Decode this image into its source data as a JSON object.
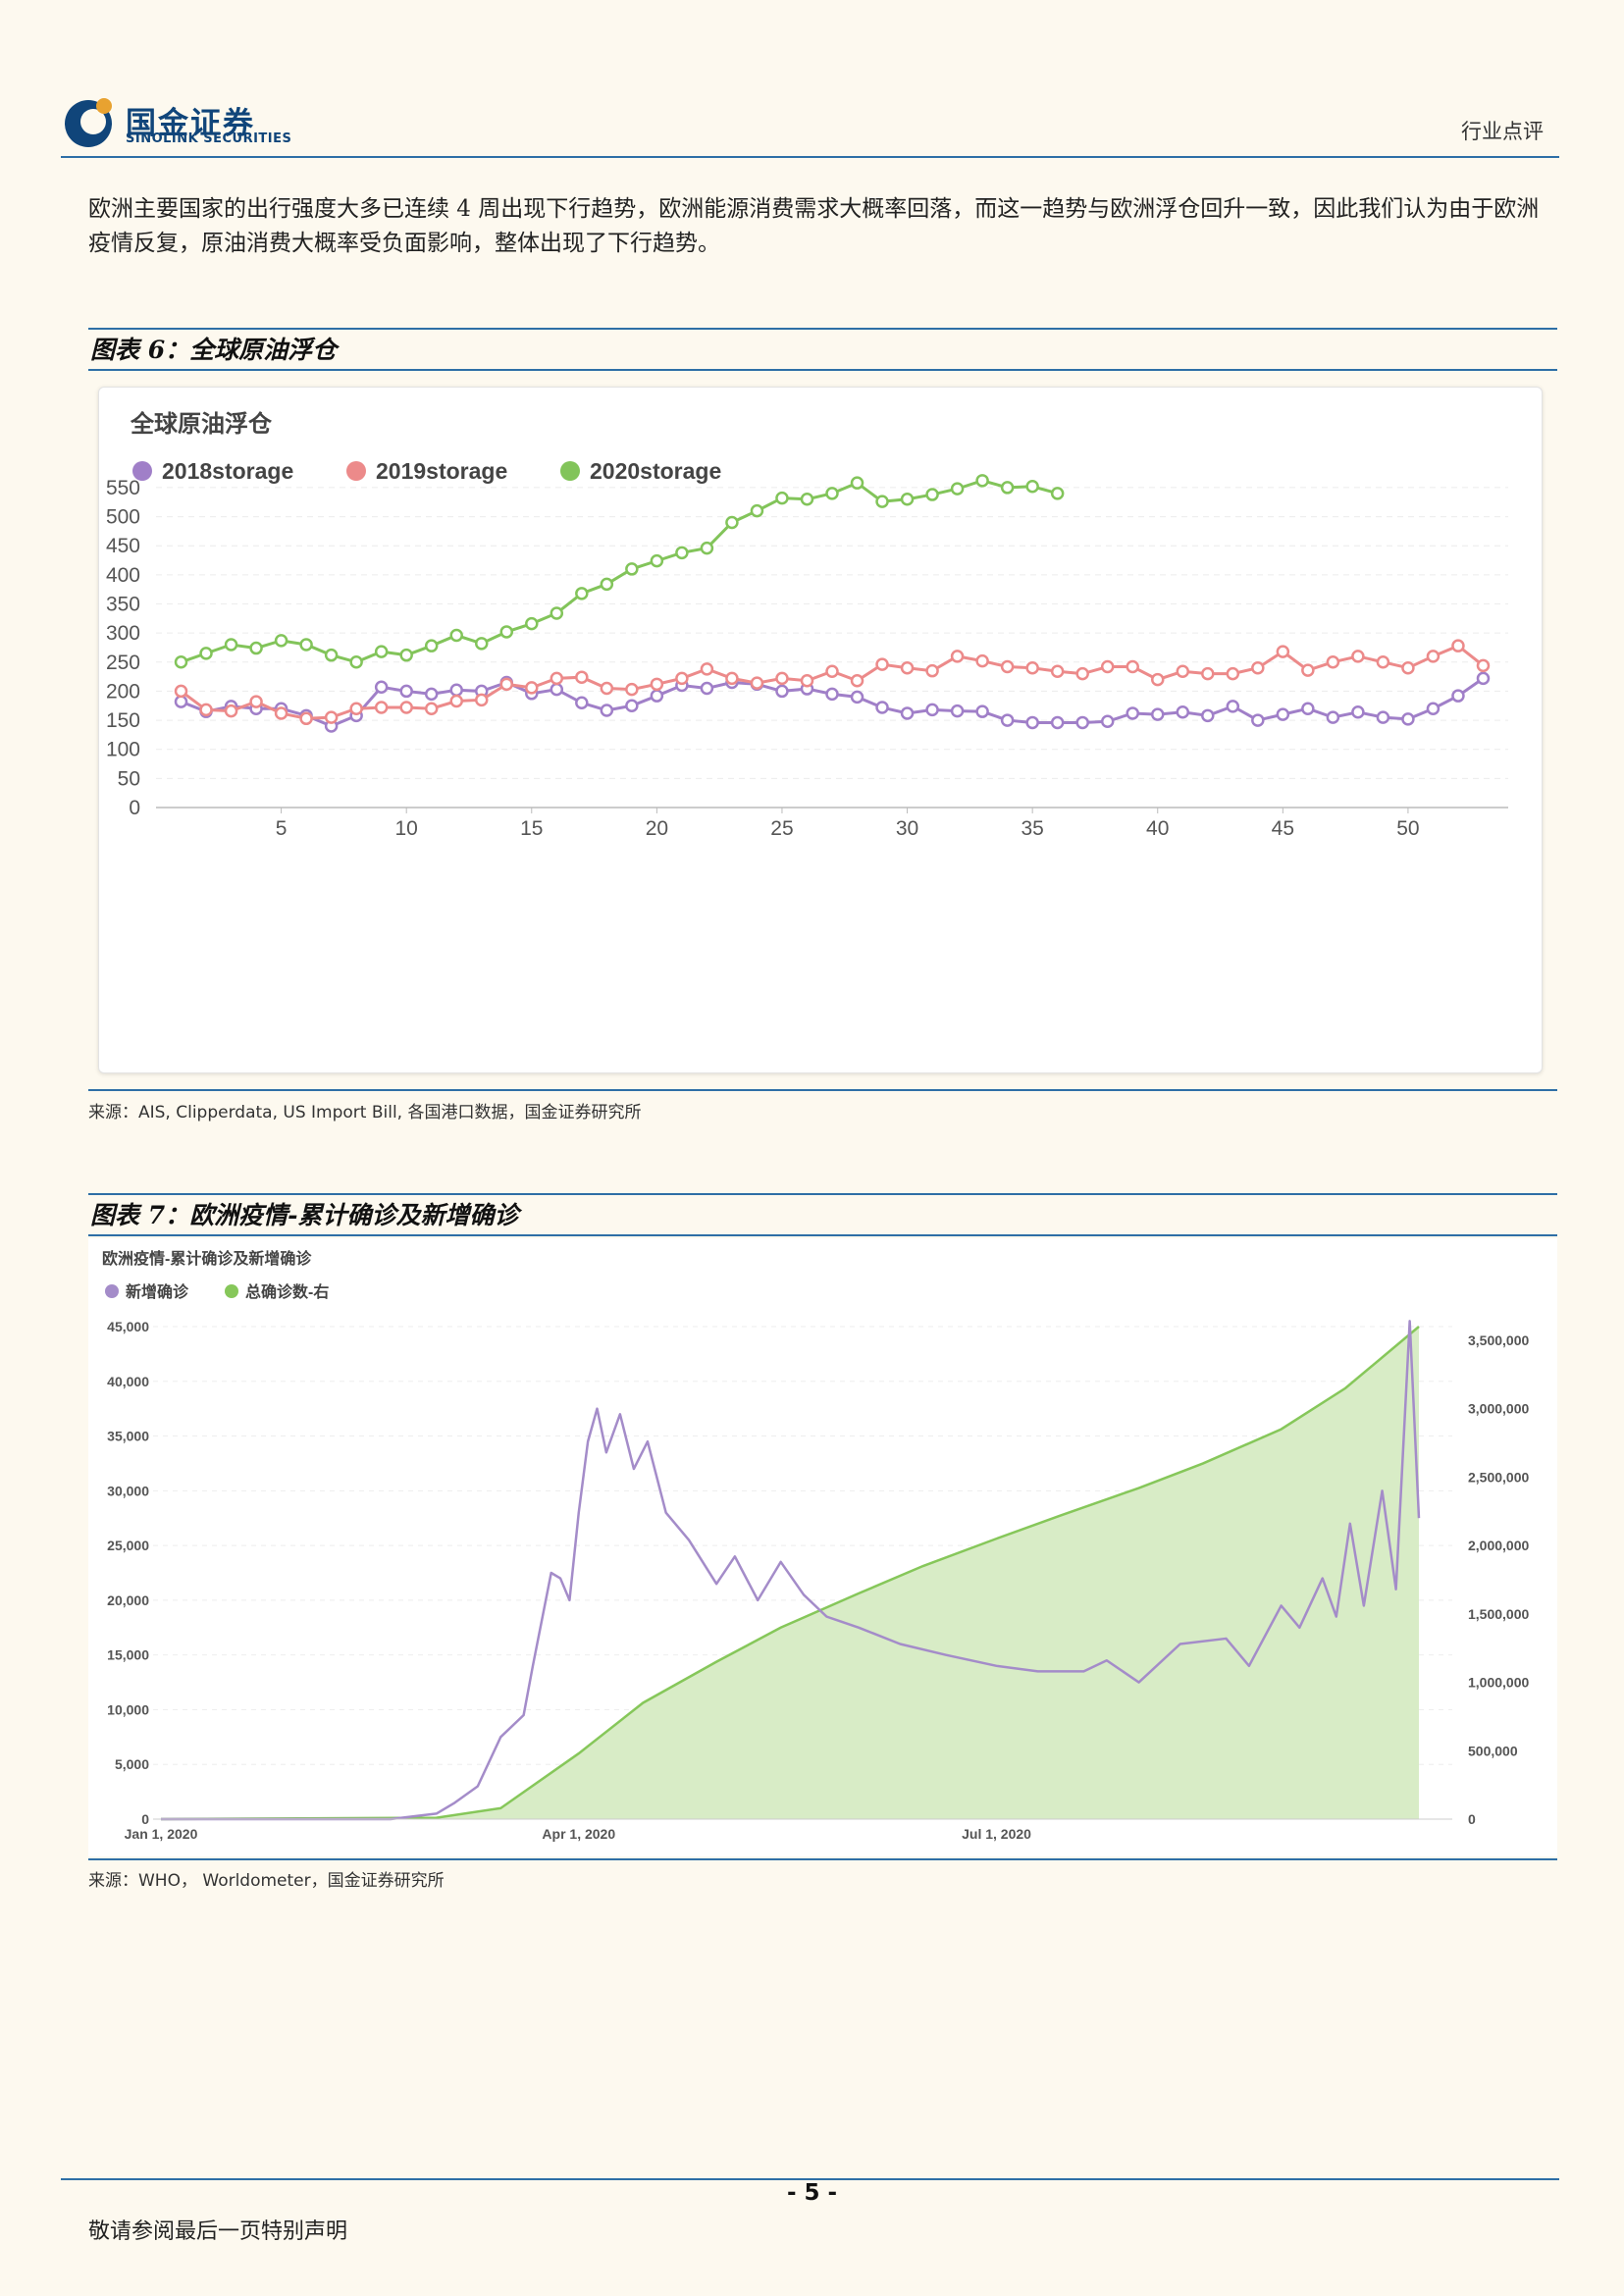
{
  "header": {
    "company_name": "国金证券",
    "company_name_en": "SINOLINK SECURITIES",
    "doc_type": "行业点评"
  },
  "body": {
    "paragraph": "欧洲主要国家的出行强度大多已连续 4 周出现下行趋势，欧洲能源消费需求大概率回落，而这一趋势与欧洲浮仓回升一致，因此我们认为由于欧洲疫情反复，原油消费大概率受负面影响，整体出现了下行趋势。"
  },
  "figure6": {
    "caption": "图表 6：全球原油浮仓",
    "source": "来源：AIS, Clipperdata, US Import Bill, 各国港口数据，国金证券研究所"
  },
  "figure7": {
    "caption": "图表 7：欧洲疫情-累计确诊及新增确诊",
    "source": "来源：WHO， Worldometer，国金证券研究所"
  },
  "footer": {
    "page_number": "- 5 -",
    "note": "敬请参阅最后一页特别声明"
  },
  "colors": {
    "brand_blue": "#10457a",
    "rule_blue": "#2e6fa6",
    "s2018": "#a07fc8",
    "s2019": "#ec8a8a",
    "s2020": "#82c45a",
    "new_cases": "#a48cc9",
    "total_cases": "#86c75a"
  },
  "chart_data": [
    {
      "type": "line",
      "title": "全球原油浮仓",
      "legend_placement": "top-left",
      "grid": true,
      "x_ticks": [
        5,
        10,
        15,
        20,
        25,
        30,
        35,
        40,
        45,
        50
      ],
      "y_ticks": [
        0,
        50,
        100,
        150,
        200,
        250,
        300,
        350,
        400,
        450,
        500,
        550
      ],
      "xlim": [
        0,
        54
      ],
      "ylim": [
        0,
        560
      ],
      "series": [
        {
          "name": "2018storage",
          "x": [
            1,
            2,
            3,
            4,
            5,
            6,
            7,
            8,
            9,
            10,
            11,
            12,
            13,
            14,
            15,
            16,
            17,
            18,
            19,
            20,
            21,
            22,
            23,
            24,
            25,
            26,
            27,
            28,
            29,
            30,
            31,
            32,
            33,
            34,
            35,
            36,
            37,
            38,
            39,
            40,
            41,
            42,
            43,
            44,
            45,
            46,
            47,
            48,
            49,
            50,
            51,
            52,
            53
          ],
          "values": [
            182,
            165,
            174,
            170,
            170,
            158,
            140,
            158,
            207,
            200,
            195,
            202,
            200,
            215,
            196,
            203,
            180,
            167,
            175,
            192,
            210,
            205,
            215,
            212,
            200,
            204,
            195,
            190,
            172,
            162,
            168,
            166,
            165,
            150,
            146,
            146,
            146,
            148,
            162,
            160,
            164,
            158,
            174,
            150,
            160,
            170,
            155,
            164,
            155,
            152,
            170,
            192,
            222
          ]
        },
        {
          "name": "2019storage",
          "x": [
            1,
            2,
            3,
            4,
            5,
            6,
            7,
            8,
            9,
            10,
            11,
            12,
            13,
            14,
            15,
            16,
            17,
            18,
            19,
            20,
            21,
            22,
            23,
            24,
            25,
            26,
            27,
            28,
            29,
            30,
            31,
            32,
            33,
            34,
            35,
            36,
            37,
            38,
            39,
            40,
            41,
            42,
            43,
            44,
            45,
            46,
            47,
            48,
            49,
            50,
            51,
            52,
            53
          ],
          "values": [
            200,
            168,
            166,
            182,
            162,
            153,
            155,
            170,
            172,
            172,
            170,
            183,
            185,
            212,
            206,
            222,
            224,
            205,
            203,
            212,
            222,
            238,
            222,
            214,
            222,
            218,
            234,
            218,
            246,
            240,
            235,
            260,
            252,
            242,
            240,
            234,
            230,
            242,
            242,
            220,
            234,
            230,
            230,
            240,
            268,
            236,
            250,
            260,
            250,
            240,
            260,
            278,
            244
          ]
        },
        {
          "name": "2020storage",
          "x": [
            1,
            2,
            3,
            4,
            5,
            6,
            7,
            8,
            9,
            10,
            11,
            12,
            13,
            14,
            15,
            16,
            17,
            18,
            19,
            20,
            21,
            22,
            23,
            24,
            25,
            26,
            27,
            28,
            29,
            30,
            31,
            32,
            33,
            34,
            35,
            36
          ],
          "values": [
            250,
            265,
            280,
            274,
            287,
            280,
            262,
            250,
            268,
            262,
            278,
            296,
            282,
            302,
            316,
            334,
            368,
            384,
            410,
            424,
            438,
            446,
            490,
            510,
            532,
            530,
            540,
            558,
            526,
            530,
            538,
            548,
            562,
            550,
            552,
            540
          ]
        }
      ]
    },
    {
      "type": "area",
      "title": "欧洲疫情-累计确诊及新增确诊",
      "legend_placement": "top-left",
      "grid": true,
      "x_ticks": [
        "Jan 1, 2020",
        "Apr 1, 2020",
        "Jul 1, 2020"
      ],
      "y_left_ticks": [
        "0",
        "5,000",
        "10,000",
        "15,000",
        "20,000",
        "25,000",
        "30,000",
        "35,000",
        "40,000",
        "45,000"
      ],
      "y_right_ticks": [
        "0",
        "500,000",
        "1,000,000",
        "1,500,000",
        "2,000,000",
        "2,500,000",
        "3,000,000",
        "3,500,000"
      ],
      "ylim_left": [
        0,
        45000
      ],
      "ylim_right": [
        0,
        3600000
      ],
      "series": [
        {
          "name": "新增确诊",
          "axis": "left",
          "x": [
            "2020-01-01",
            "2020-02-20",
            "2020-03-01",
            "2020-03-05",
            "2020-03-10",
            "2020-03-15",
            "2020-03-20",
            "2020-03-22",
            "2020-03-26",
            "2020-03-28",
            "2020-03-30",
            "2020-04-01",
            "2020-04-03",
            "2020-04-05",
            "2020-04-07",
            "2020-04-10",
            "2020-04-13",
            "2020-04-16",
            "2020-04-20",
            "2020-04-25",
            "2020-05-01",
            "2020-05-05",
            "2020-05-10",
            "2020-05-15",
            "2020-05-20",
            "2020-05-25",
            "2020-06-01",
            "2020-06-10",
            "2020-06-20",
            "2020-07-01",
            "2020-07-10",
            "2020-07-20",
            "2020-07-25",
            "2020-08-01",
            "2020-08-10",
            "2020-08-20",
            "2020-08-25",
            "2020-09-01",
            "2020-09-05",
            "2020-09-10",
            "2020-09-13",
            "2020-09-16",
            "2020-09-19",
            "2020-09-23",
            "2020-09-26",
            "2020-09-29",
            "2020-10-01"
          ],
          "values": [
            0,
            0,
            500,
            1500,
            3000,
            7500,
            9500,
            14000,
            22500,
            22000,
            20000,
            28000,
            34500,
            37500,
            33500,
            37000,
            32000,
            34500,
            28000,
            25500,
            21500,
            24000,
            20000,
            23500,
            20500,
            18500,
            17500,
            16000,
            15000,
            14000,
            13500,
            13500,
            14500,
            12500,
            16000,
            16500,
            14000,
            19500,
            17500,
            22000,
            18500,
            27000,
            19500,
            30000,
            21000,
            45500,
            27500
          ]
        },
        {
          "name": "总确诊数-右",
          "axis": "right",
          "x": [
            "2020-01-01",
            "2020-03-01",
            "2020-03-15",
            "2020-04-01",
            "2020-04-15",
            "2020-05-01",
            "2020-05-15",
            "2020-06-01",
            "2020-06-15",
            "2020-07-01",
            "2020-07-15",
            "2020-08-01",
            "2020-08-15",
            "2020-09-01",
            "2020-09-15",
            "2020-10-01"
          ],
          "values": [
            0,
            10000,
            80000,
            480000,
            850000,
            1150000,
            1400000,
            1650000,
            1850000,
            2050000,
            2220000,
            2420000,
            2600000,
            2850000,
            3150000,
            3600000
          ]
        }
      ]
    }
  ]
}
